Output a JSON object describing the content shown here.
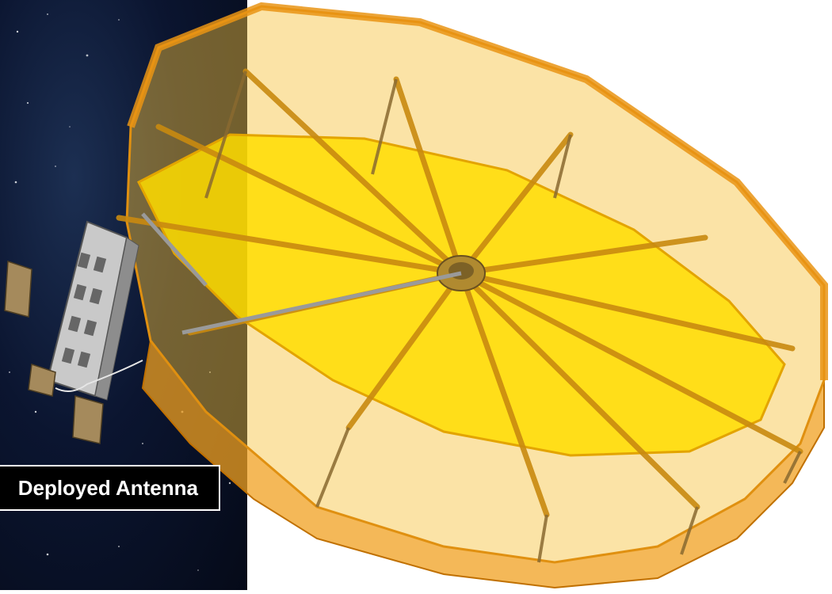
{
  "caption": {
    "text": "Deployed Antenna"
  },
  "colors": {
    "space_background": "#0b1530",
    "reflector_fill": "#ffd400",
    "rim_orange": "#f0a020",
    "strut": "#c98a10",
    "caption_bg": "#000000",
    "caption_text": "#ffffff"
  },
  "icons": [
    "deployable-reflector-antenna",
    "satellite-bus"
  ]
}
